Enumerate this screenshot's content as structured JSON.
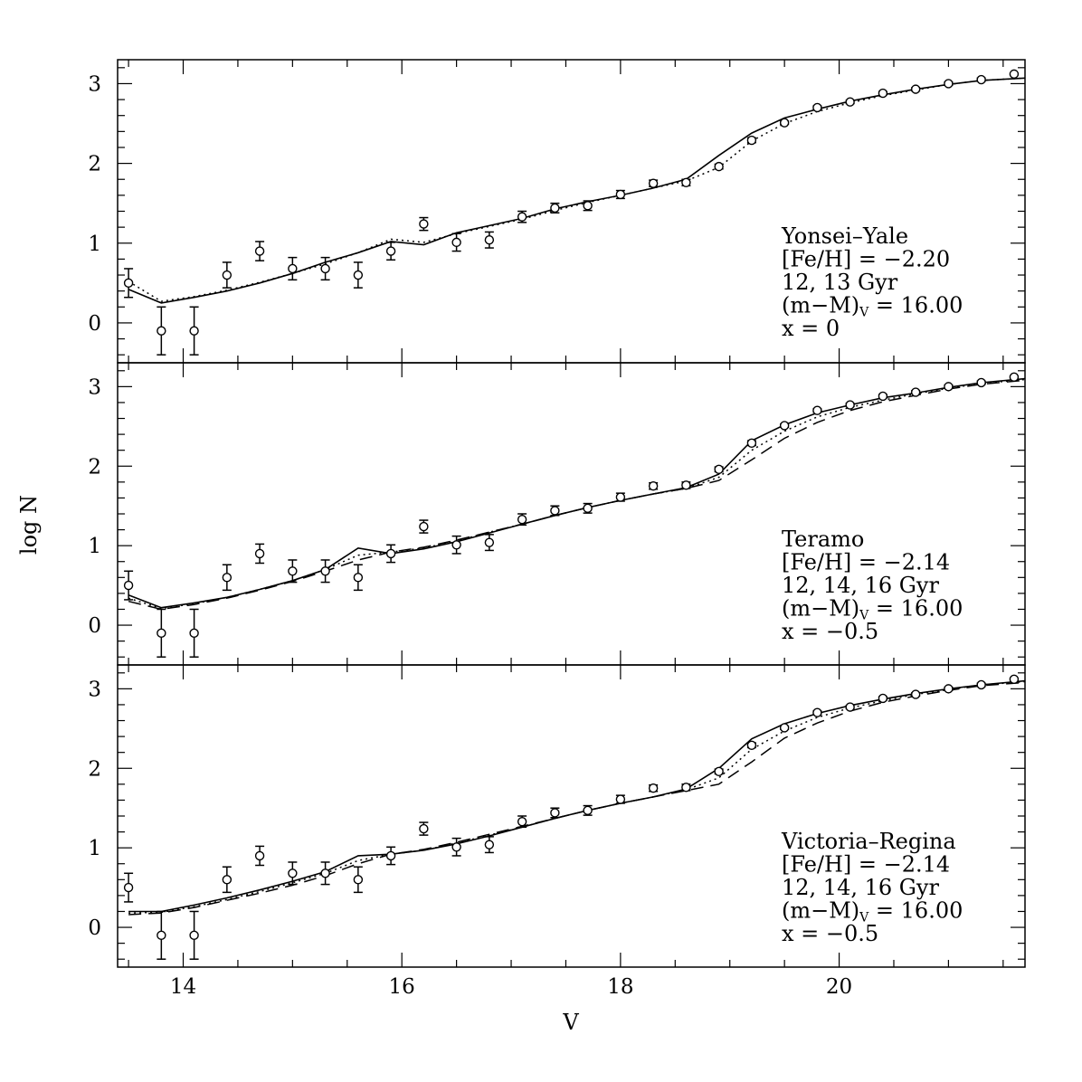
{
  "chart_data": {
    "type": "line",
    "xlabel": "V",
    "ylabel": "log N",
    "xlim": [
      13.4,
      21.7
    ],
    "ylim": [
      -0.5,
      3.3
    ],
    "xticks": [
      14,
      16,
      18,
      20
    ],
    "yticks": [
      0,
      1,
      2,
      3
    ],
    "observed": {
      "x": [
        13.5,
        13.8,
        14.1,
        14.4,
        14.7,
        15.0,
        15.3,
        15.6,
        15.9,
        16.2,
        16.5,
        16.8,
        17.1,
        17.4,
        17.7,
        18.0,
        18.3,
        18.6,
        18.9,
        19.2,
        19.5,
        19.8,
        20.1,
        20.4,
        20.7,
        21.0,
        21.3,
        21.6
      ],
      "y": [
        0.5,
        -0.1,
        -0.1,
        0.6,
        0.9,
        0.68,
        0.68,
        0.6,
        0.9,
        1.24,
        1.01,
        1.04,
        1.33,
        1.44,
        1.47,
        1.61,
        1.75,
        1.76,
        1.96,
        2.29,
        2.51,
        2.7,
        2.77,
        2.88,
        2.93,
        3.0,
        3.05,
        3.12
      ],
      "err": [
        0.18,
        0.3,
        0.3,
        0.16,
        0.12,
        0.14,
        0.14,
        0.16,
        0.11,
        0.08,
        0.11,
        0.1,
        0.07,
        0.06,
        0.06,
        0.05,
        0.04,
        0.04,
        0.03,
        0.03,
        0.02,
        0.02,
        0.02,
        0.02,
        0.02,
        0.02,
        0.02,
        0.01
      ]
    },
    "panels": [
      {
        "label_lines": [
          "Yonsei–Yale",
          "[Fe/H] = −2.20",
          "12, 13 Gyr",
          "(m−M)",
          "x = 0"
        ],
        "label_sub": "V",
        "label_sub_suffix": " = 16.00",
        "models": [
          {
            "style": "solid",
            "x": [
              13.5,
              13.8,
              14.1,
              14.4,
              14.7,
              15.0,
              15.3,
              15.6,
              15.9,
              16.2,
              16.5,
              16.8,
              17.1,
              17.4,
              17.7,
              18.0,
              18.3,
              18.6,
              18.9,
              19.2,
              19.5,
              19.8,
              20.1,
              20.4,
              20.7,
              21.0,
              21.3,
              21.7
            ],
            "y": [
              0.42,
              0.25,
              0.32,
              0.4,
              0.5,
              0.62,
              0.76,
              0.88,
              1.02,
              0.98,
              1.13,
              1.22,
              1.31,
              1.43,
              1.52,
              1.6,
              1.69,
              1.8,
              2.1,
              2.38,
              2.57,
              2.68,
              2.78,
              2.86,
              2.93,
              2.99,
              3.04,
              3.07
            ]
          },
          {
            "style": "dotted",
            "x": [
              13.5,
              13.8,
              14.1,
              14.4,
              14.7,
              15.0,
              15.3,
              15.6,
              15.9,
              16.2,
              16.5,
              16.8,
              17.1,
              17.4,
              17.7,
              18.0,
              18.3,
              18.6,
              18.9,
              19.2,
              19.5,
              19.8,
              20.1,
              20.4,
              20.7,
              21.0,
              21.3,
              21.7
            ],
            "y": [
              0.52,
              0.27,
              0.33,
              0.41,
              0.51,
              0.62,
              0.74,
              0.88,
              1.05,
              1.01,
              1.12,
              1.21,
              1.3,
              1.41,
              1.51,
              1.6,
              1.69,
              1.78,
              1.95,
              2.28,
              2.5,
              2.65,
              2.76,
              2.85,
              2.92,
              2.99,
              3.04,
              3.07
            ]
          }
        ]
      },
      {
        "label_lines": [
          "Teramo",
          "[Fe/H] = −2.14",
          "12, 14, 16 Gyr",
          "(m−M)",
          "x = −0.5"
        ],
        "label_sub": "V",
        "label_sub_suffix": " = 16.00",
        "models": [
          {
            "style": "solid",
            "x": [
              13.5,
              13.8,
              14.1,
              14.4,
              14.7,
              15.0,
              15.3,
              15.6,
              15.9,
              16.2,
              16.5,
              16.8,
              17.1,
              17.4,
              17.7,
              18.0,
              18.3,
              18.6,
              18.9,
              19.2,
              19.5,
              19.8,
              20.1,
              20.4,
              20.7,
              21.0,
              21.3,
              21.7
            ],
            "y": [
              0.38,
              0.22,
              0.28,
              0.35,
              0.45,
              0.56,
              0.7,
              0.97,
              0.9,
              0.96,
              1.05,
              1.16,
              1.27,
              1.38,
              1.48,
              1.57,
              1.65,
              1.73,
              1.9,
              2.32,
              2.52,
              2.67,
              2.77,
              2.86,
              2.92,
              2.99,
              3.05,
              3.1
            ]
          },
          {
            "style": "dotted",
            "x": [
              13.5,
              13.8,
              14.1,
              14.4,
              14.7,
              15.0,
              15.3,
              15.6,
              15.9,
              16.2,
              16.5,
              16.8,
              17.1,
              17.4,
              17.7,
              18.0,
              18.3,
              18.6,
              18.9,
              19.2,
              19.5,
              19.8,
              20.1,
              20.4,
              20.7,
              21.0,
              21.3,
              21.7
            ],
            "y": [
              0.34,
              0.21,
              0.27,
              0.35,
              0.45,
              0.56,
              0.7,
              0.88,
              0.92,
              0.97,
              1.06,
              1.17,
              1.27,
              1.38,
              1.48,
              1.57,
              1.65,
              1.72,
              1.86,
              2.2,
              2.44,
              2.62,
              2.74,
              2.83,
              2.91,
              2.98,
              3.04,
              3.09
            ]
          },
          {
            "style": "dashed",
            "x": [
              13.5,
              13.8,
              14.1,
              14.4,
              14.7,
              15.0,
              15.3,
              15.6,
              15.9,
              16.2,
              16.5,
              16.8,
              17.1,
              17.4,
              17.7,
              18.0,
              18.3,
              18.6,
              18.9,
              19.2,
              19.5,
              19.8,
              20.1,
              20.4,
              20.7,
              21.0,
              21.3,
              21.7
            ],
            "y": [
              0.3,
              0.2,
              0.26,
              0.34,
              0.44,
              0.55,
              0.68,
              0.82,
              0.92,
              0.98,
              1.07,
              1.17,
              1.27,
              1.38,
              1.48,
              1.57,
              1.65,
              1.72,
              1.82,
              2.08,
              2.35,
              2.55,
              2.7,
              2.81,
              2.89,
              2.97,
              3.03,
              3.08
            ]
          }
        ]
      },
      {
        "label_lines": [
          "Victoria–Regina",
          "[Fe/H] = −2.14",
          "12, 14, 16 Gyr",
          "(m−M)",
          "x = −0.5"
        ],
        "label_sub": "V",
        "label_sub_suffix": " = 16.00",
        "models": [
          {
            "style": "solid",
            "x": [
              13.5,
              13.8,
              14.1,
              14.4,
              14.7,
              15.0,
              15.3,
              15.6,
              15.9,
              16.2,
              16.5,
              16.8,
              17.1,
              17.4,
              17.7,
              18.0,
              18.3,
              18.6,
              18.9,
              19.2,
              19.5,
              19.8,
              20.1,
              20.4,
              20.7,
              21.0,
              21.3,
              21.7
            ],
            "y": [
              0.2,
              0.2,
              0.28,
              0.37,
              0.47,
              0.58,
              0.7,
              0.9,
              0.92,
              0.97,
              1.05,
              1.15,
              1.26,
              1.37,
              1.47,
              1.56,
              1.64,
              1.74,
              2.0,
              2.37,
              2.56,
              2.69,
              2.79,
              2.87,
              2.94,
              3.0,
              3.05,
              3.1
            ]
          },
          {
            "style": "dotted",
            "x": [
              13.5,
              13.8,
              14.1,
              14.4,
              14.7,
              15.0,
              15.3,
              15.6,
              15.9,
              16.2,
              16.5,
              16.8,
              17.1,
              17.4,
              17.7,
              18.0,
              18.3,
              18.6,
              18.9,
              19.2,
              19.5,
              19.8,
              20.1,
              20.4,
              20.7,
              21.0,
              21.3,
              21.7
            ],
            "y": [
              0.18,
              0.19,
              0.26,
              0.35,
              0.45,
              0.56,
              0.68,
              0.84,
              0.92,
              0.97,
              1.06,
              1.16,
              1.26,
              1.37,
              1.47,
              1.56,
              1.64,
              1.73,
              1.88,
              2.24,
              2.47,
              2.64,
              2.76,
              2.85,
              2.93,
              2.99,
              3.05,
              3.09
            ]
          },
          {
            "style": "dashed",
            "x": [
              13.5,
              13.8,
              14.1,
              14.4,
              14.7,
              15.0,
              15.3,
              15.6,
              15.9,
              16.2,
              16.5,
              16.8,
              17.1,
              17.4,
              17.7,
              18.0,
              18.3,
              18.6,
              18.9,
              19.2,
              19.5,
              19.8,
              20.1,
              20.4,
              20.7,
              21.0,
              21.3,
              21.7
            ],
            "y": [
              0.16,
              0.18,
              0.25,
              0.34,
              0.43,
              0.53,
              0.65,
              0.8,
              0.92,
              0.98,
              1.07,
              1.17,
              1.27,
              1.37,
              1.47,
              1.56,
              1.64,
              1.72,
              1.8,
              2.08,
              2.38,
              2.57,
              2.72,
              2.83,
              2.91,
              2.98,
              3.04,
              3.08
            ]
          }
        ]
      }
    ]
  }
}
